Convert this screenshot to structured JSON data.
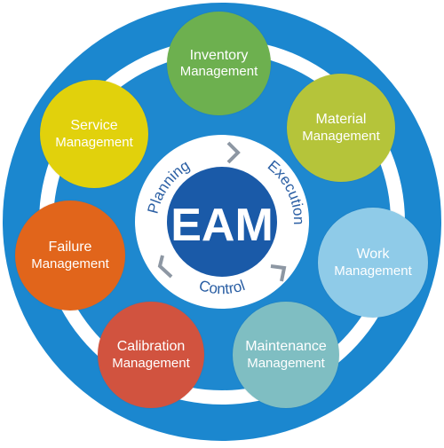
{
  "center": {
    "label": "EAM",
    "cycle": [
      "Planning",
      "Execution",
      "Control"
    ]
  },
  "modules": [
    {
      "line1": "Inventory",
      "line2": "Management",
      "color": "#6db04f"
    },
    {
      "line1": "Material",
      "line2": "Management",
      "color": "#b5c43a"
    },
    {
      "line1": "Work",
      "line2": "Management",
      "color": "#8fcbe8"
    },
    {
      "line1": "Maintenance",
      "line2": "Management",
      "color": "#7fbec2"
    },
    {
      "line1": "Calibration",
      "line2": "Management",
      "color": "#d1533f"
    },
    {
      "line1": "Failure",
      "line2": "Management",
      "color": "#e1651b"
    },
    {
      "line1": "Service",
      "line2": "Management",
      "color": "#e1d10c"
    }
  ],
  "colors": {
    "outer_ring": "#1b87cf",
    "white_band": "#ffffff",
    "inner_disc": "#1e88cf",
    "cycle_ring": "#ffffff",
    "core": "#1a5aa8",
    "arrow": "#8d97a3",
    "cycle_text": "#2a5ea3"
  }
}
